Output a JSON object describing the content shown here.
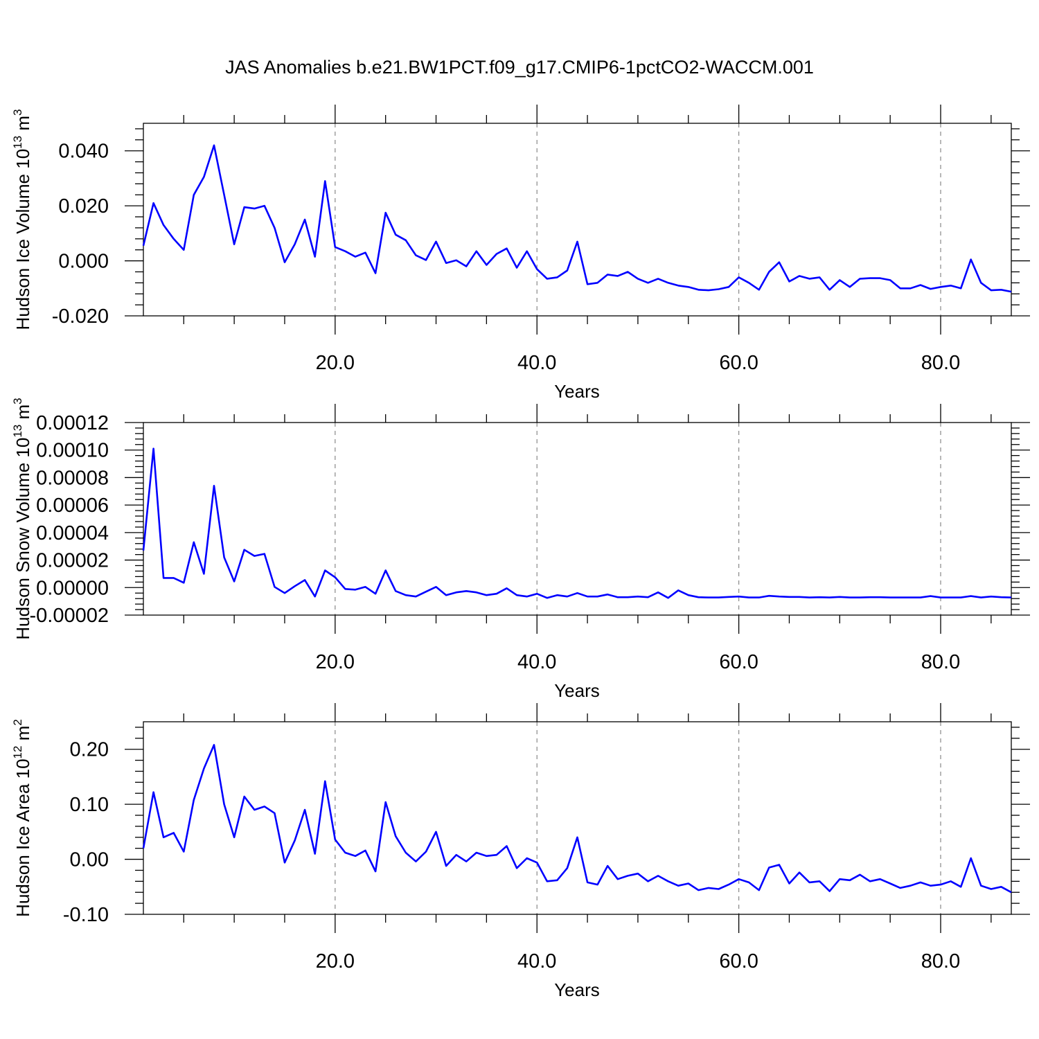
{
  "title": "JAS Anomalies b.e21.BW1PCT.f09_g17.CMIP6-1pctCO2-WACCM.001",
  "colors": {
    "series": "#0000ff",
    "frame": "#000000",
    "grid": "#888888"
  },
  "chart_data": [
    {
      "type": "line",
      "name": "hudson-ice-volume",
      "ylabel": {
        "text": "Hudson Ice Volume 10",
        "exponent": "13",
        "unit": " m",
        "unit_exponent": "3"
      },
      "xlabel": "Years",
      "xlim": [
        1,
        87
      ],
      "ylim": [
        -0.02,
        0.05
      ],
      "x_ticks": [
        20,
        40,
        60,
        80
      ],
      "x_tick_labels": [
        "20.0",
        "40.0",
        "60.0",
        "80.0"
      ],
      "y_ticks": [
        -0.02,
        0.0,
        0.02,
        0.04
      ],
      "y_tick_labels": [
        "-0.020",
        "0.000",
        "0.020",
        "0.040"
      ],
      "grid": "dashed vertical at x ticks",
      "x": [
        1,
        2,
        3,
        4,
        5,
        6,
        7,
        8,
        9,
        10,
        11,
        12,
        13,
        14,
        15,
        16,
        17,
        18,
        19,
        20,
        21,
        22,
        23,
        24,
        25,
        26,
        27,
        28,
        29,
        30,
        31,
        32,
        33,
        34,
        35,
        36,
        37,
        38,
        39,
        40,
        41,
        42,
        43,
        44,
        45,
        46,
        47,
        48,
        49,
        50,
        51,
        52,
        53,
        54,
        55,
        56,
        57,
        58,
        59,
        60,
        61,
        62,
        63,
        64,
        65,
        66,
        67,
        68,
        69,
        70,
        71,
        72,
        73,
        74,
        75,
        76,
        77,
        78,
        79,
        80,
        81,
        82,
        83,
        84,
        85,
        86,
        87
      ],
      "values": [
        0.0055,
        0.021,
        0.013,
        0.008,
        0.004,
        0.024,
        0.0305,
        0.042,
        0.024,
        0.006,
        0.0195,
        0.019,
        0.02,
        0.012,
        -0.0005,
        0.006,
        0.015,
        0.0015,
        0.029,
        0.005,
        0.0035,
        0.0015,
        0.003,
        -0.0045,
        0.0175,
        0.0095,
        0.0075,
        0.002,
        0.0003,
        0.007,
        -0.0008,
        0.0002,
        -0.002,
        0.0035,
        -0.0015,
        0.0025,
        0.0045,
        -0.0025,
        0.0035,
        -0.003,
        -0.0065,
        -0.006,
        -0.0035,
        0.007,
        -0.0085,
        -0.008,
        -0.005,
        -0.0055,
        -0.004,
        -0.0065,
        -0.008,
        -0.0065,
        -0.008,
        -0.009,
        -0.0095,
        -0.0105,
        -0.0107,
        -0.0103,
        -0.0095,
        -0.006,
        -0.008,
        -0.0105,
        -0.004,
        -0.0005,
        -0.0075,
        -0.0055,
        -0.0065,
        -0.006,
        -0.0105,
        -0.007,
        -0.0095,
        -0.0065,
        -0.0063,
        -0.0063,
        -0.007,
        -0.01,
        -0.01,
        -0.0088,
        -0.0102,
        -0.0095,
        -0.009,
        -0.01,
        0.0005,
        -0.008,
        -0.0107,
        -0.0105,
        -0.0112
      ]
    },
    {
      "type": "line",
      "name": "hudson-snow-volume",
      "ylabel": {
        "text": "Hudson Snow Volume 10",
        "exponent": "13",
        "unit": " m",
        "unit_exponent": "3"
      },
      "xlabel": "Years",
      "xlim": [
        1,
        87
      ],
      "ylim": [
        -2e-05,
        0.00012
      ],
      "x_ticks": [
        20,
        40,
        60,
        80
      ],
      "x_tick_labels": [
        "20.0",
        "40.0",
        "60.0",
        "80.0"
      ],
      "y_ticks": [
        -2e-05,
        0.0,
        2e-05,
        4e-05,
        6e-05,
        8e-05,
        0.0001,
        0.00012
      ],
      "y_tick_labels": [
        "-0.00002",
        "0.00000",
        "0.00002",
        "0.00004",
        "0.00006",
        "0.00008",
        "0.00010",
        "0.00012"
      ],
      "grid": "dashed vertical at x ticks",
      "x": [
        1,
        2,
        3,
        4,
        5,
        6,
        7,
        8,
        9,
        10,
        11,
        12,
        13,
        14,
        15,
        16,
        17,
        18,
        19,
        20,
        21,
        22,
        23,
        24,
        25,
        26,
        27,
        28,
        29,
        30,
        31,
        32,
        33,
        34,
        35,
        36,
        37,
        38,
        39,
        40,
        41,
        42,
        43,
        44,
        45,
        46,
        47,
        48,
        49,
        50,
        51,
        52,
        53,
        54,
        55,
        56,
        57,
        58,
        59,
        60,
        61,
        62,
        63,
        64,
        65,
        66,
        67,
        68,
        69,
        70,
        71,
        72,
        73,
        74,
        75,
        76,
        77,
        78,
        79,
        80,
        81,
        82,
        83,
        84,
        85,
        86,
        87
      ],
      "values": [
        2.7e-05,
        0.000101,
        7e-06,
        7e-06,
        3.5e-06,
        3.3e-05,
        1e-05,
        7.4e-05,
        2.2e-05,
        4.5e-06,
        2.75e-05,
        2.3e-05,
        2.45e-05,
        5e-07,
        -4e-06,
        1e-06,
        5.5e-06,
        -6.5e-06,
        1.25e-05,
        7.5e-06,
        -1e-06,
        -1.5e-06,
        5e-07,
        -4.5e-06,
        1.25e-05,
        -2.5e-06,
        -5.5e-06,
        -6.5e-06,
        -3e-06,
        5e-07,
        -5.5e-06,
        -3.5e-06,
        -2.5e-06,
        -3.5e-06,
        -5.5e-06,
        -4.5e-06,
        -5e-07,
        -5.5e-06,
        -6.5e-06,
        -4.5e-06,
        -7.5e-06,
        -5.5e-06,
        -6.5e-06,
        -4e-06,
        -6.5e-06,
        -6.5e-06,
        -5e-06,
        -7e-06,
        -7e-06,
        -6.5e-06,
        -7e-06,
        -3.5e-06,
        -7.5e-06,
        -2e-06,
        -5.5e-06,
        -7e-06,
        -7.2e-06,
        -7.2e-06,
        -6.8e-06,
        -6.5e-06,
        -7.2e-06,
        -7.2e-06,
        -6e-06,
        -6.5e-06,
        -6.8e-06,
        -6.8e-06,
        -7.2e-06,
        -7e-06,
        -7.2e-06,
        -6.8e-06,
        -7.2e-06,
        -7.2e-06,
        -7e-06,
        -7e-06,
        -7.2e-06,
        -7.2e-06,
        -7.2e-06,
        -7.2e-06,
        -6.2e-06,
        -7.2e-06,
        -7.2e-06,
        -7.2e-06,
        -6.2e-06,
        -7.2e-06,
        -6.5e-06,
        -7e-06,
        -7.2e-06
      ]
    },
    {
      "type": "line",
      "name": "hudson-ice-area",
      "ylabel": {
        "text": "Hudson Ice Area 10",
        "exponent": "12",
        "unit": " m",
        "unit_exponent": "2"
      },
      "xlabel": "Years",
      "xlim": [
        1,
        87
      ],
      "ylim": [
        -0.1,
        0.25
      ],
      "x_ticks": [
        20,
        40,
        60,
        80
      ],
      "x_tick_labels": [
        "20.0",
        "40.0",
        "60.0",
        "80.0"
      ],
      "y_ticks": [
        -0.1,
        0.0,
        0.1,
        0.2
      ],
      "y_tick_labels": [
        "-0.10",
        "0.00",
        "0.10",
        "0.20"
      ],
      "grid": "dashed vertical at x ticks",
      "x": [
        1,
        2,
        3,
        4,
        5,
        6,
        7,
        8,
        9,
        10,
        11,
        12,
        13,
        14,
        15,
        16,
        17,
        18,
        19,
        20,
        21,
        22,
        23,
        24,
        25,
        26,
        27,
        28,
        29,
        30,
        31,
        32,
        33,
        34,
        35,
        36,
        37,
        38,
        39,
        40,
        41,
        42,
        43,
        44,
        45,
        46,
        47,
        48,
        49,
        50,
        51,
        52,
        53,
        54,
        55,
        56,
        57,
        58,
        59,
        60,
        61,
        62,
        63,
        64,
        65,
        66,
        67,
        68,
        69,
        70,
        71,
        72,
        73,
        74,
        75,
        76,
        77,
        78,
        79,
        80,
        81,
        82,
        83,
        84,
        85,
        86,
        87
      ],
      "values": [
        0.02,
        0.122,
        0.04,
        0.048,
        0.014,
        0.108,
        0.165,
        0.208,
        0.1,
        0.04,
        0.114,
        0.09,
        0.096,
        0.084,
        -0.006,
        0.034,
        0.09,
        0.01,
        0.142,
        0.036,
        0.012,
        0.006,
        0.016,
        -0.022,
        0.104,
        0.042,
        0.012,
        -0.004,
        0.014,
        0.05,
        -0.012,
        0.008,
        -0.004,
        0.012,
        0.006,
        0.008,
        0.024,
        -0.016,
        0.002,
        -0.006,
        -0.04,
        -0.038,
        -0.016,
        0.04,
        -0.042,
        -0.046,
        -0.012,
        -0.036,
        -0.03,
        -0.026,
        -0.04,
        -0.03,
        -0.04,
        -0.048,
        -0.044,
        -0.056,
        -0.052,
        -0.054,
        -0.046,
        -0.036,
        -0.042,
        -0.056,
        -0.015,
        -0.01,
        -0.044,
        -0.024,
        -0.042,
        -0.04,
        -0.058,
        -0.036,
        -0.038,
        -0.028,
        -0.04,
        -0.036,
        -0.044,
        -0.052,
        -0.048,
        -0.042,
        -0.048,
        -0.046,
        -0.04,
        -0.05,
        0.002,
        -0.048,
        -0.054,
        -0.05,
        -0.06
      ]
    }
  ]
}
